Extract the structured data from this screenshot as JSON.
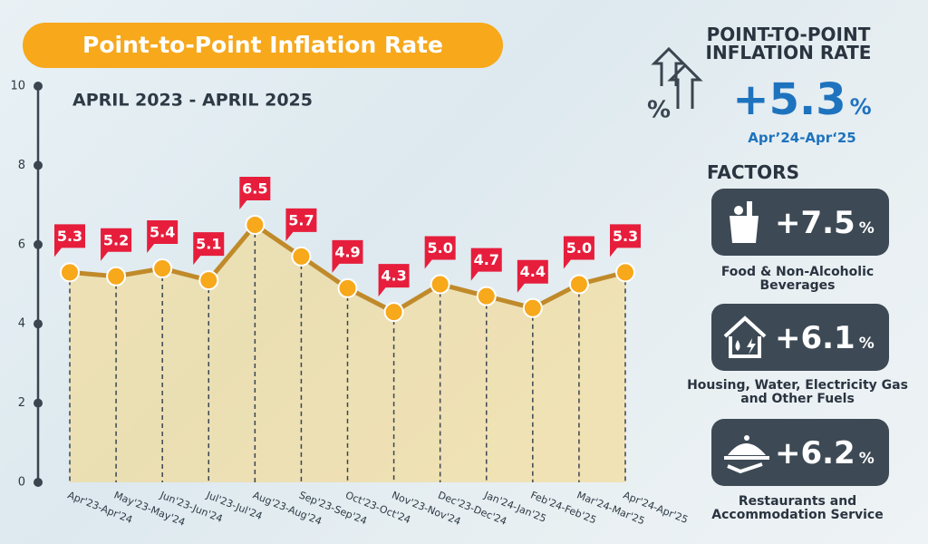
{
  "chart_data": {
    "type": "line",
    "title": "Point-to-Point Inflation Rate",
    "subtitle": "APRIL 2023 - APRIL 2025",
    "categories": [
      "Apr'23-Apr'24",
      "May'23-May'24",
      "Jun'23-Jun'24",
      "Jul'23-Jul'24",
      "Aug'23-Aug'24",
      "Sep'23-Sep'24",
      "Oct'23-Oct'24",
      "Nov'23-Nov'24",
      "Dec'23-Dec'24",
      "Jan'24-Jan'25",
      "Feb'24-Feb'25",
      "Mar'24-Mar'25",
      "Apr'24-Apr'25"
    ],
    "values": [
      5.3,
      5.2,
      5.4,
      5.1,
      6.5,
      5.7,
      4.9,
      4.3,
      5.0,
      4.7,
      4.4,
      5.0,
      5.3
    ],
    "value_labels": [
      "5.3",
      "5.2",
      "5.4",
      "5.1",
      "6.5",
      "5.7",
      "4.9",
      "4.3",
      "5.0",
      "4.7",
      "4.4",
      "5.0",
      "5.3"
    ],
    "color": "#c08a2a",
    "point_color": "#f7a81b",
    "label_color": "#e61e3c",
    "ylim": [
      0,
      10
    ],
    "yticks": [
      0,
      2,
      4,
      6,
      8,
      10
    ]
  },
  "panel": {
    "title": "POINT-TO-POINT INFLATION RATE",
    "value": "+5.3",
    "unit": "%",
    "period": "Apr’24-Apr‘25",
    "factors_heading": "FACTORS",
    "factors": [
      {
        "value": "+7.5",
        "unit": "%",
        "label": "Food & Non-Alcoholic Beverages"
      },
      {
        "value": "+6.1",
        "unit": "%",
        "label": "Housing, Water, Electricity Gas and Other Fuels"
      },
      {
        "value": "+6.2",
        "unit": "%",
        "label": "Restaurants and Accommodation Service"
      }
    ]
  }
}
